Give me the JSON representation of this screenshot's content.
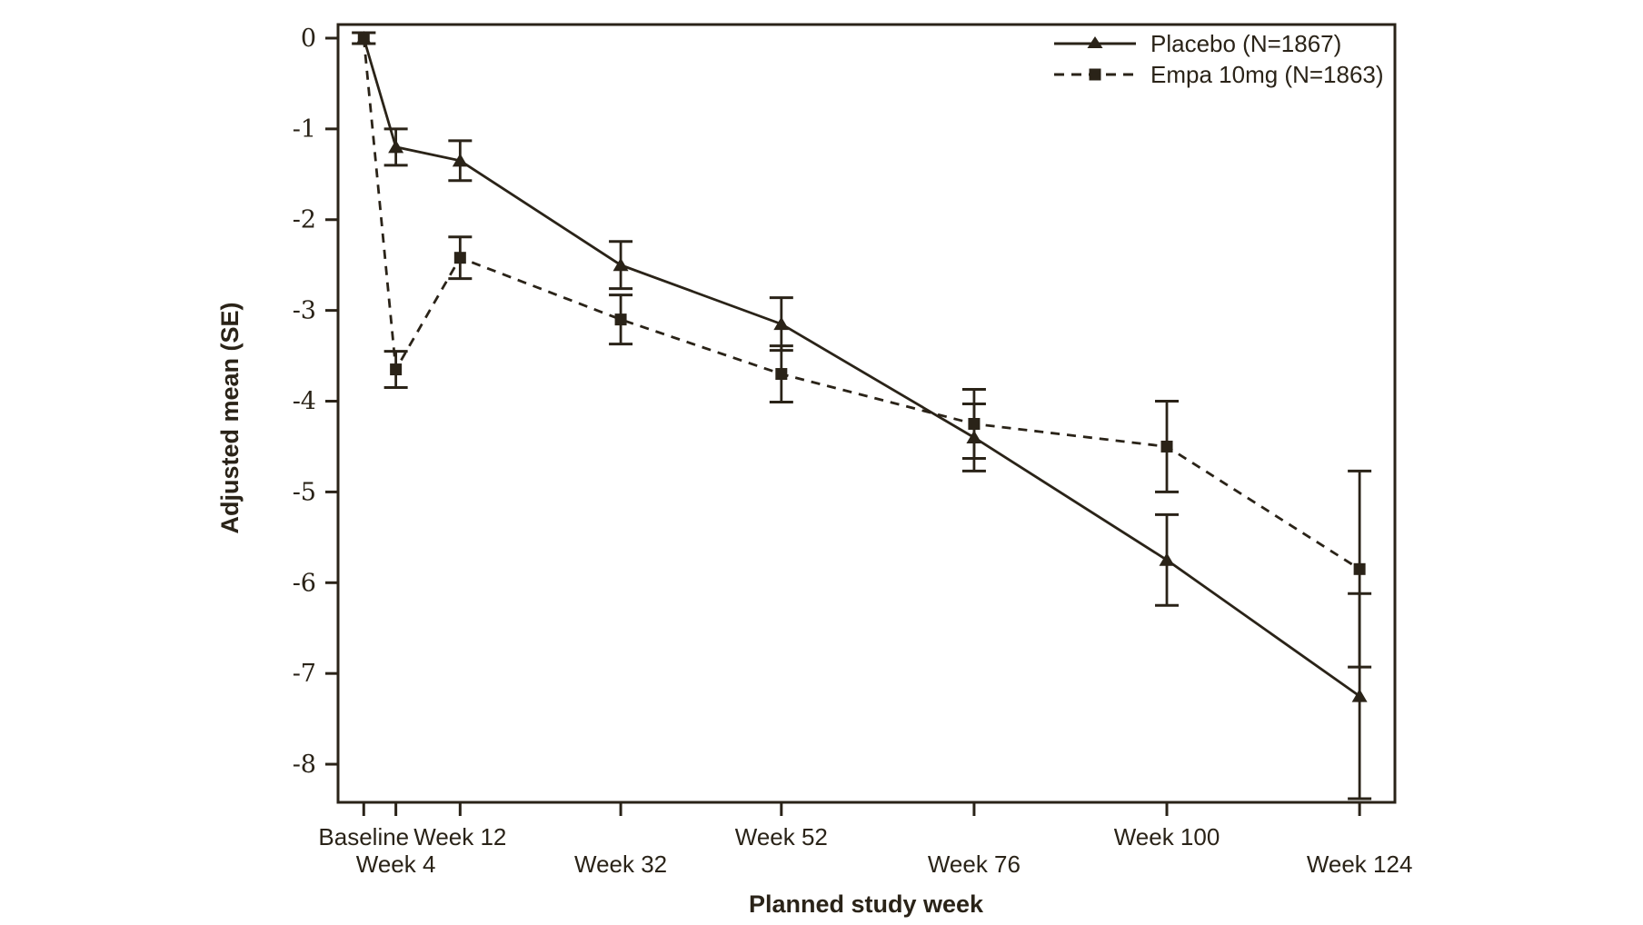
{
  "figure": {
    "background": "#ffffff",
    "ink_color": "#2a2318"
  },
  "chart_data": {
    "type": "line",
    "title": "",
    "xlabel": "Planned study week",
    "ylabel": "Adjusted mean (SE)",
    "legend_position": "top-right-inside",
    "grid": false,
    "error_bars": "SE",
    "ylim": [
      -8.42,
      0.15
    ],
    "xlim_weeks": [
      -3.2,
      128.4
    ],
    "y_ticks": [
      0,
      -1,
      -2,
      -3,
      -4,
      -5,
      -6,
      -7,
      -8
    ],
    "x_ticks": [
      {
        "week": 0,
        "label": "Baseline",
        "row": 1
      },
      {
        "week": 4,
        "label": "Week 4",
        "row": 2
      },
      {
        "week": 12,
        "label": "Week 12",
        "row": 1
      },
      {
        "week": 32,
        "label": "Week 32",
        "row": 2
      },
      {
        "week": 52,
        "label": "Week 52",
        "row": 1
      },
      {
        "week": 76,
        "label": "Week 76",
        "row": 2
      },
      {
        "week": 100,
        "label": "Week 100",
        "row": 1
      },
      {
        "week": 124,
        "label": "Week 124",
        "row": 2
      }
    ],
    "series": [
      {
        "name": "Placebo (N=1867)",
        "marker": "triangle",
        "line_style": "solid",
        "x_weeks": [
          0,
          4,
          12,
          32,
          52,
          76,
          100,
          124
        ],
        "means": [
          0.0,
          -1.2,
          -1.35,
          -2.5,
          -3.15,
          -4.4,
          -5.75,
          -7.25
        ],
        "se": [
          0.06,
          0.2,
          0.22,
          0.26,
          0.29,
          0.37,
          0.5,
          1.13
        ]
      },
      {
        "name": "Empa 10mg (N=1863)",
        "marker": "square",
        "line_style": "dashed",
        "x_weeks": [
          0,
          4,
          12,
          32,
          52,
          76,
          100,
          124
        ],
        "means": [
          0.0,
          -3.65,
          -2.42,
          -3.1,
          -3.7,
          -4.25,
          -4.5,
          -5.85
        ],
        "se": [
          0.06,
          0.2,
          0.23,
          0.27,
          0.31,
          0.38,
          0.5,
          1.08
        ]
      }
    ]
  }
}
